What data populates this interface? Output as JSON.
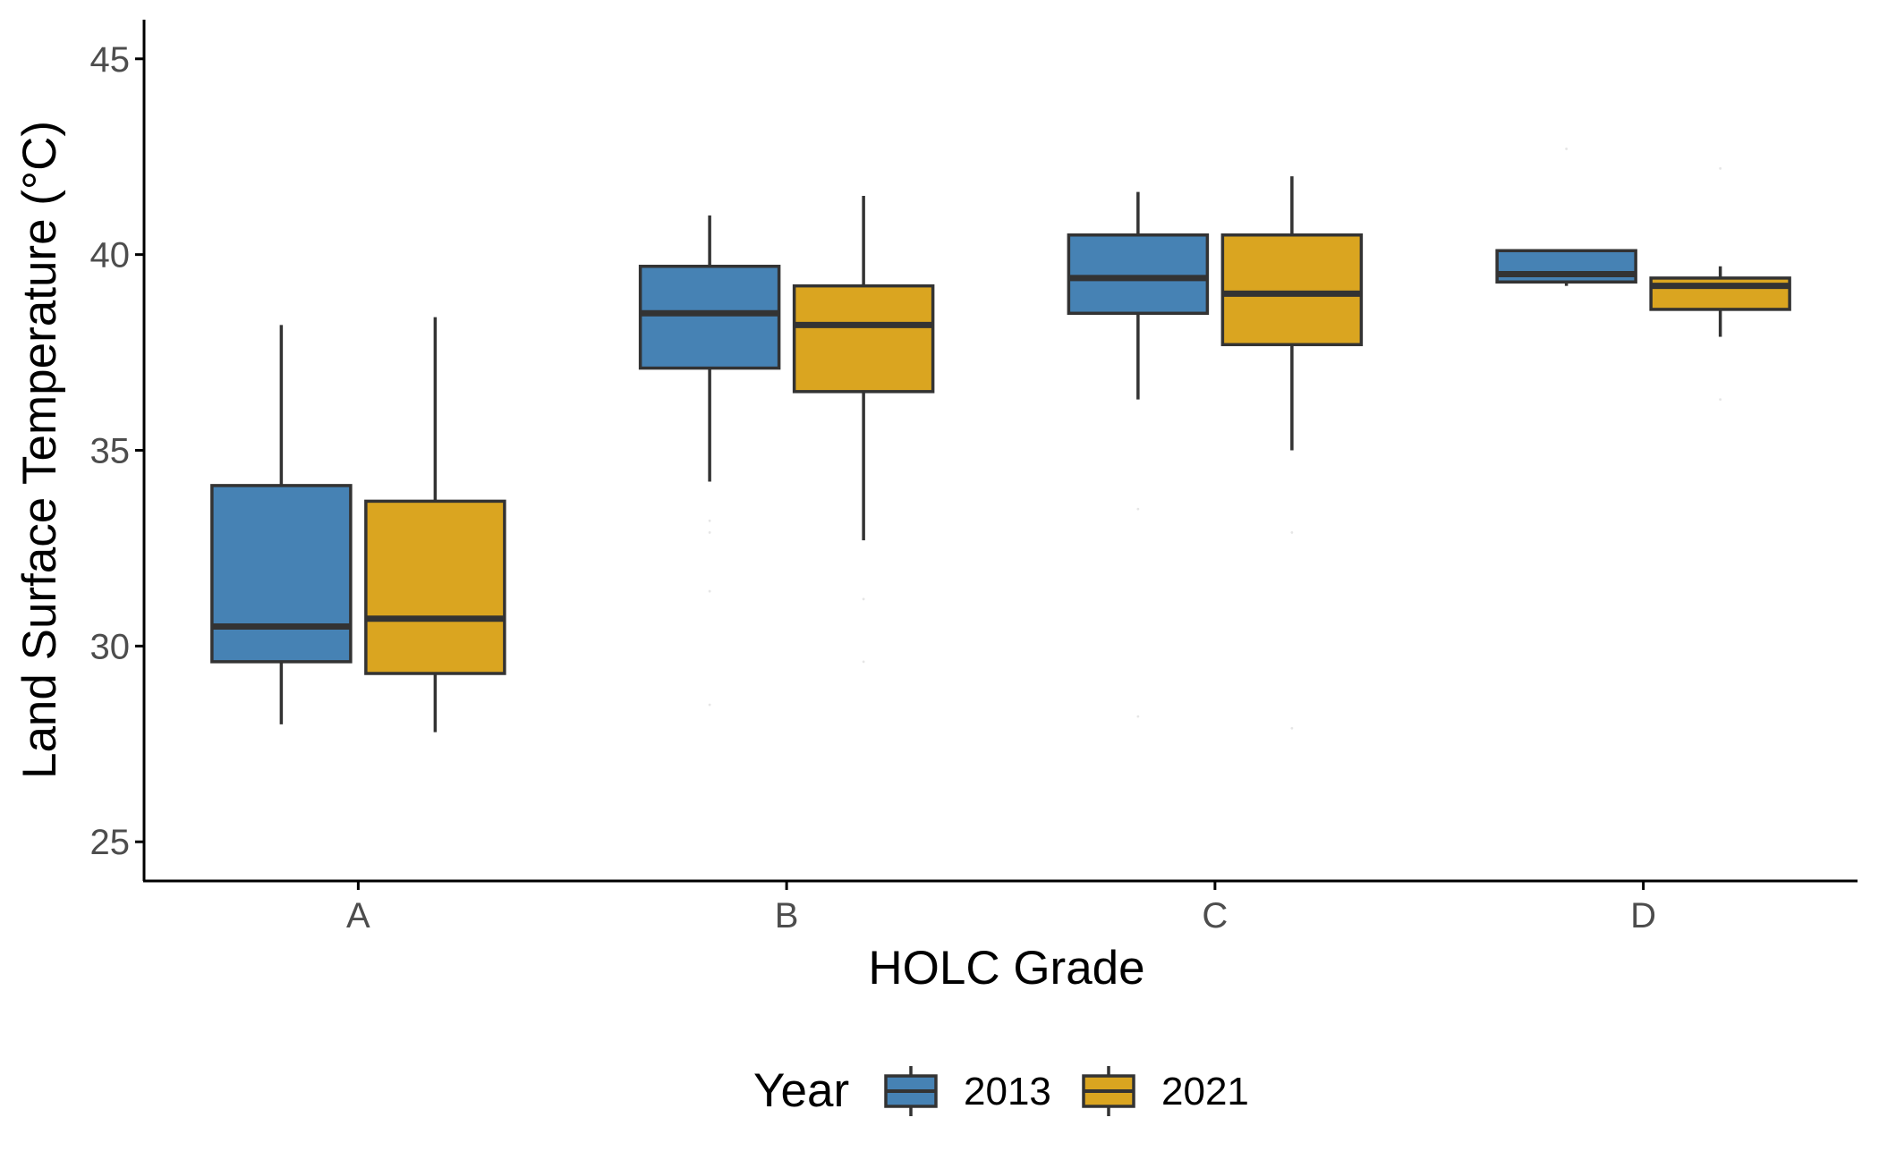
{
  "chart_data": {
    "type": "boxplot",
    "title": "",
    "xlabel": "HOLC Grade",
    "ylabel": "Land Surface Temperature (°C)",
    "categories": [
      "A",
      "B",
      "C",
      "D"
    ],
    "ylim": [
      24,
      46
    ],
    "yticks": [
      25,
      30,
      35,
      40,
      45
    ],
    "grid": false,
    "legend": {
      "title": "Year",
      "position": "bottom"
    },
    "series": [
      {
        "name": "2013",
        "color": "#4682B4",
        "boxes": [
          {
            "category": "A",
            "whisker_low": 28.0,
            "q1": 29.6,
            "median": 30.5,
            "q3": 34.1,
            "whisker_high": 38.2,
            "outliers": []
          },
          {
            "category": "B",
            "whisker_low": 34.2,
            "q1": 37.1,
            "median": 38.5,
            "q3": 39.7,
            "whisker_high": 41.0,
            "outliers": [
              33.2,
              32.9,
              31.4,
              28.5
            ]
          },
          {
            "category": "C",
            "whisker_low": 36.3,
            "q1": 38.5,
            "median": 39.4,
            "q3": 40.5,
            "whisker_high": 41.6,
            "outliers": [
              33.5,
              28.2
            ]
          },
          {
            "category": "D",
            "whisker_low": 39.2,
            "q1": 39.3,
            "median": 39.5,
            "q3": 40.1,
            "whisker_high": 40.1,
            "outliers": [
              42.7
            ]
          }
        ]
      },
      {
        "name": "2021",
        "color": "#DAA520",
        "boxes": [
          {
            "category": "A",
            "whisker_low": 27.8,
            "q1": 29.3,
            "median": 30.7,
            "q3": 33.7,
            "whisker_high": 38.4,
            "outliers": []
          },
          {
            "category": "B",
            "whisker_low": 32.7,
            "q1": 36.5,
            "median": 38.2,
            "q3": 39.2,
            "whisker_high": 41.5,
            "outliers": [
              31.2,
              29.6
            ]
          },
          {
            "category": "C",
            "whisker_low": 35.0,
            "q1": 37.7,
            "median": 39.0,
            "q3": 40.5,
            "whisker_high": 42.0,
            "outliers": [
              32.9,
              27.9
            ]
          },
          {
            "category": "D",
            "whisker_low": 37.9,
            "q1": 38.6,
            "median": 39.2,
            "q3": 39.4,
            "whisker_high": 39.7,
            "outliers": [
              42.2,
              36.3
            ]
          }
        ]
      }
    ]
  }
}
